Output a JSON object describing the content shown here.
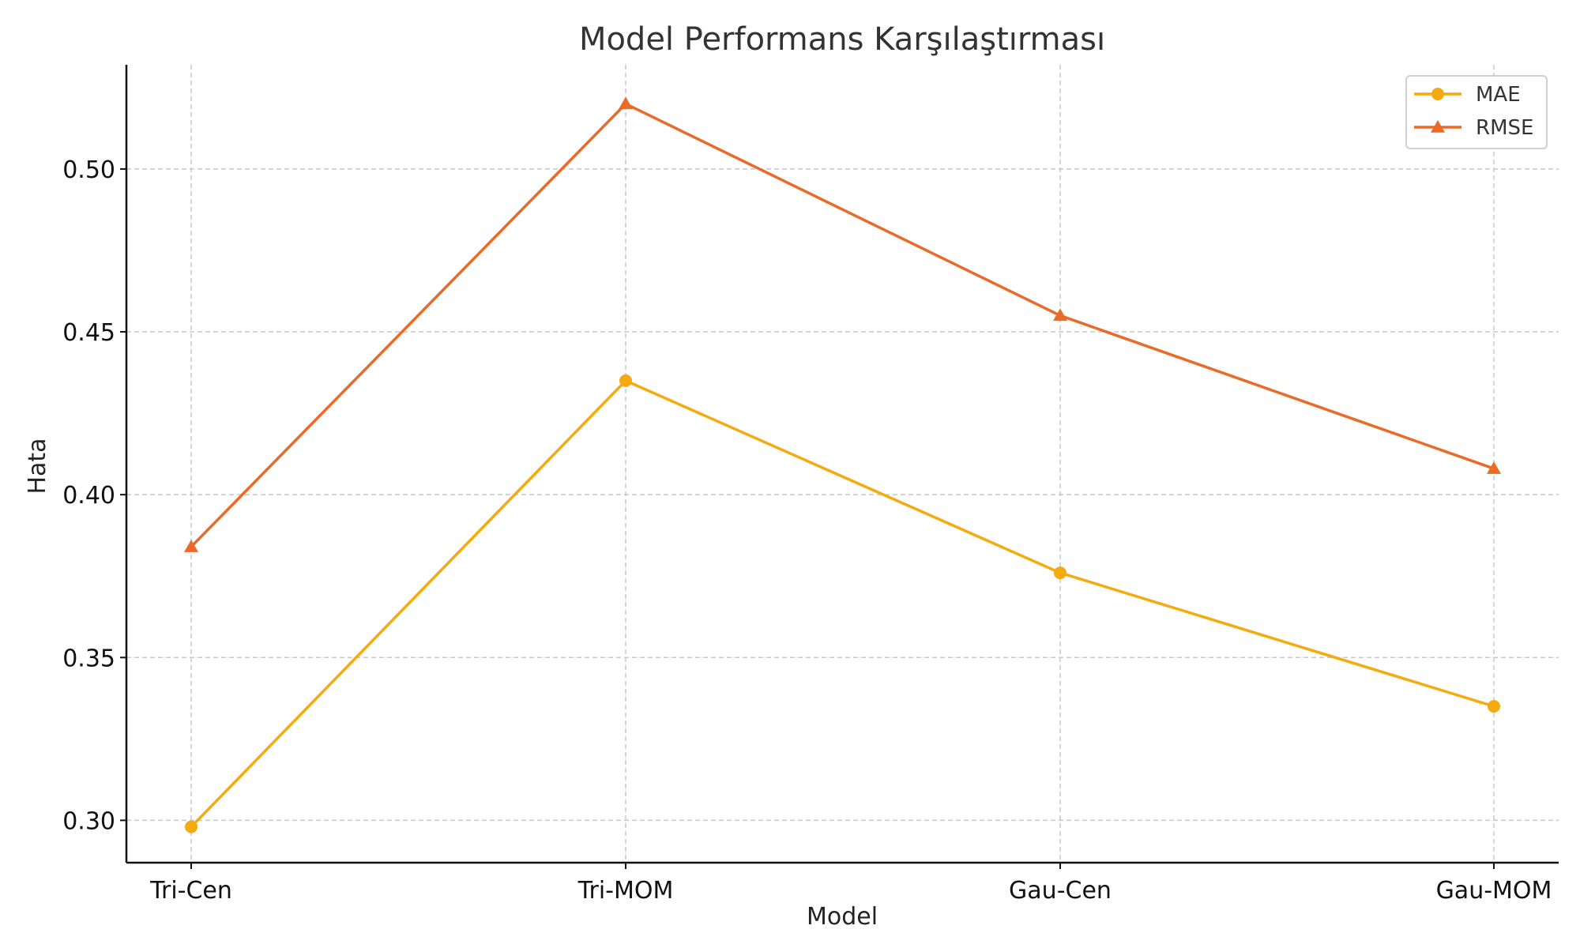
{
  "chart_data": {
    "type": "line",
    "title": "Model Performans Karşılaştırması",
    "xlabel": "Model",
    "ylabel": "Hata",
    "categories": [
      "Tri-Cen",
      "Tri-MOM",
      "Gau-Cen",
      "Gau-MOM"
    ],
    "series": [
      {
        "name": "MAE",
        "values": [
          0.298,
          0.435,
          0.376,
          0.335
        ],
        "color": "#f5aa0f",
        "marker": "circle"
      },
      {
        "name": "RMSE",
        "values": [
          0.384,
          0.52,
          0.455,
          0.408
        ],
        "color": "#ea6a28",
        "marker": "triangle"
      }
    ],
    "yticks": [
      0.3,
      0.35,
      0.4,
      0.45,
      0.5
    ],
    "ylim": [
      0.287,
      0.532
    ],
    "grid": true,
    "legend_position": "top-right"
  }
}
